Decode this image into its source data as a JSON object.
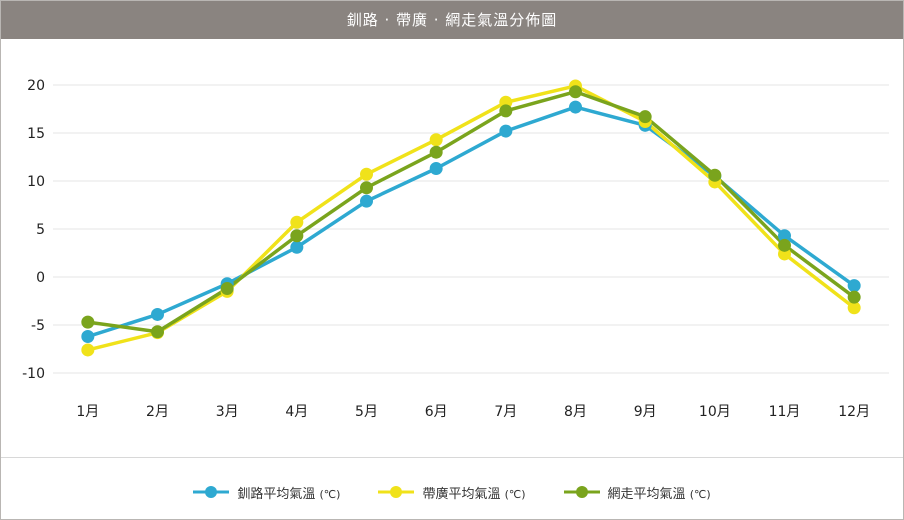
{
  "title": "釧路 · 帶廣 · 網走氣溫分佈圖",
  "colors": {
    "title_bg": "#8a8480",
    "grid": "#e6e6e6",
    "axis_text": "#222222"
  },
  "chart_data": {
    "type": "line",
    "categories": [
      "1月",
      "2月",
      "3月",
      "4月",
      "5月",
      "6月",
      "7月",
      "8月",
      "9月",
      "10月",
      "11月",
      "12月"
    ],
    "ylim": [
      -10,
      20
    ],
    "yticks": [
      20,
      15,
      10,
      5,
      0,
      -5,
      -10
    ],
    "grid": true,
    "legend_position": "bottom",
    "series": [
      {
        "name": "釧路平均氣溫",
        "unit": "(℃)",
        "color": "#2ea9d1",
        "values": [
          -6.2,
          -3.9,
          -0.7,
          3.1,
          7.9,
          11.3,
          15.2,
          17.7,
          15.8,
          10.5,
          4.3,
          -0.9
        ]
      },
      {
        "name": "帶廣平均氣溫",
        "unit": "(℃)",
        "color": "#f0e21a",
        "values": [
          -7.6,
          -5.8,
          -1.5,
          5.7,
          10.7,
          14.3,
          18.2,
          19.9,
          16.2,
          9.9,
          2.4,
          -3.2
        ]
      },
      {
        "name": "網走平均氣溫",
        "unit": "(℃)",
        "color": "#7aa41d",
        "values": [
          -4.7,
          -5.7,
          -1.2,
          4.3,
          9.3,
          13.0,
          17.3,
          19.3,
          16.7,
          10.6,
          3.3,
          -2.1
        ]
      }
    ]
  }
}
